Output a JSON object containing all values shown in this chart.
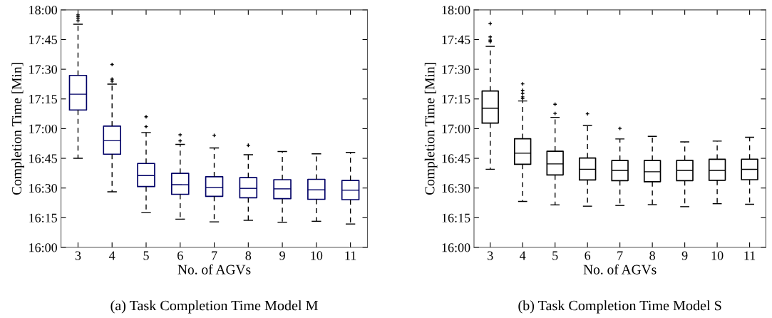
{
  "chart_data": [
    {
      "type": "box",
      "xlabel": "No. of AGVs",
      "ylabel": "Completion Time [Min]",
      "categories": [
        "3",
        "4",
        "5",
        "6",
        "7",
        "8",
        "9",
        "10",
        "11"
      ],
      "ylim": [
        16,
        18
      ],
      "yticks": [
        {
          "value": 16,
          "label": "16:00"
        },
        {
          "value": 16.25,
          "label": "16:15"
        },
        {
          "value": 16.5,
          "label": "16:30"
        },
        {
          "value": 16.75,
          "label": "16:45"
        },
        {
          "value": 17,
          "label": "17:00"
        },
        {
          "value": 17.25,
          "label": "17:15"
        },
        {
          "value": 17.5,
          "label": "17:30"
        },
        {
          "value": 17.75,
          "label": "17:45"
        },
        {
          "value": 18,
          "label": "18:00"
        }
      ],
      "annotations": [
        "(a) Task Completion Time Model M"
      ],
      "grid": false,
      "series": [
        {
          "color": "#000066",
          "boxes": [
            {
              "low": 16.75,
              "q1": 17.157,
              "median": 17.29,
              "q3": 17.448,
              "high": 17.879,
              "outliers": [
                17.908,
                17.925,
                17.942,
                17.958
              ]
            },
            {
              "low": 16.468,
              "q1": 16.785,
              "median": 16.898,
              "q3": 17.021,
              "high": 17.375,
              "outliers": [
                17.4,
                17.417,
                17.54
              ]
            },
            {
              "low": 16.292,
              "q1": 16.512,
              "median": 16.605,
              "q3": 16.707,
              "high": 16.967,
              "outliers": [
                17.017,
                17.1
              ]
            },
            {
              "low": 16.238,
              "q1": 16.447,
              "median": 16.528,
              "q3": 16.623,
              "high": 16.867,
              "outliers": [
                16.897,
                16.948
              ]
            },
            {
              "low": 16.215,
              "q1": 16.43,
              "median": 16.505,
              "q3": 16.595,
              "high": 16.837,
              "outliers": [
                16.943
              ]
            },
            {
              "low": 16.228,
              "q1": 16.418,
              "median": 16.497,
              "q3": 16.587,
              "high": 16.78,
              "outliers": [
                16.86
              ]
            },
            {
              "low": 16.212,
              "q1": 16.41,
              "median": 16.493,
              "q3": 16.57,
              "high": 16.807
            },
            {
              "low": 16.22,
              "q1": 16.405,
              "median": 16.485,
              "q3": 16.573,
              "high": 16.788
            },
            {
              "low": 16.197,
              "q1": 16.402,
              "median": 16.482,
              "q3": 16.563,
              "high": 16.8
            }
          ]
        }
      ]
    },
    {
      "type": "box",
      "xlabel": "No. of AGVs",
      "ylabel": "Completion Time [Min]",
      "categories": [
        "3",
        "4",
        "5",
        "6",
        "7",
        "8",
        "9",
        "10",
        "11"
      ],
      "ylim": [
        16,
        18
      ],
      "yticks": [
        {
          "value": 16,
          "label": "16:00"
        },
        {
          "value": 16.25,
          "label": "16:15"
        },
        {
          "value": 16.5,
          "label": "16:30"
        },
        {
          "value": 16.75,
          "label": "16:45"
        },
        {
          "value": 17,
          "label": "17:00"
        },
        {
          "value": 17.25,
          "label": "17:15"
        },
        {
          "value": 17.5,
          "label": "17:30"
        },
        {
          "value": 17.75,
          "label": "17:45"
        },
        {
          "value": 18,
          "label": "18:00"
        }
      ],
      "annotations": [
        "(b) Task Completion Time Model S"
      ],
      "grid": false,
      "series": [
        {
          "color": "#000000",
          "boxes": [
            {
              "low": 16.658,
              "q1": 17.047,
              "median": 17.172,
              "q3": 17.317,
              "high": 17.693,
              "outliers": [
                17.732,
                17.745,
                17.772,
                17.885
              ]
            },
            {
              "low": 16.387,
              "q1": 16.7,
              "median": 16.793,
              "q3": 16.915,
              "high": 17.233,
              "outliers": [
                17.252,
                17.267,
                17.297,
                17.322,
                17.377
              ]
            },
            {
              "low": 16.358,
              "q1": 16.61,
              "median": 16.703,
              "q3": 16.81,
              "high": 17.095,
              "outliers": [
                17.128,
                17.205
              ]
            },
            {
              "low": 16.347,
              "q1": 16.568,
              "median": 16.658,
              "q3": 16.753,
              "high": 17.028,
              "outliers": [
                17.125
              ]
            },
            {
              "low": 16.353,
              "q1": 16.562,
              "median": 16.648,
              "q3": 16.732,
              "high": 16.913,
              "outliers": [
                17.002
              ]
            },
            {
              "low": 16.36,
              "q1": 16.553,
              "median": 16.637,
              "q3": 16.732,
              "high": 16.935
            },
            {
              "low": 16.343,
              "q1": 16.562,
              "median": 16.648,
              "q3": 16.733,
              "high": 16.888
            },
            {
              "low": 16.368,
              "q1": 16.565,
              "median": 16.648,
              "q3": 16.742,
              "high": 16.895
            },
            {
              "low": 16.363,
              "q1": 16.57,
              "median": 16.657,
              "q3": 16.743,
              "high": 16.927
            }
          ]
        }
      ]
    }
  ]
}
